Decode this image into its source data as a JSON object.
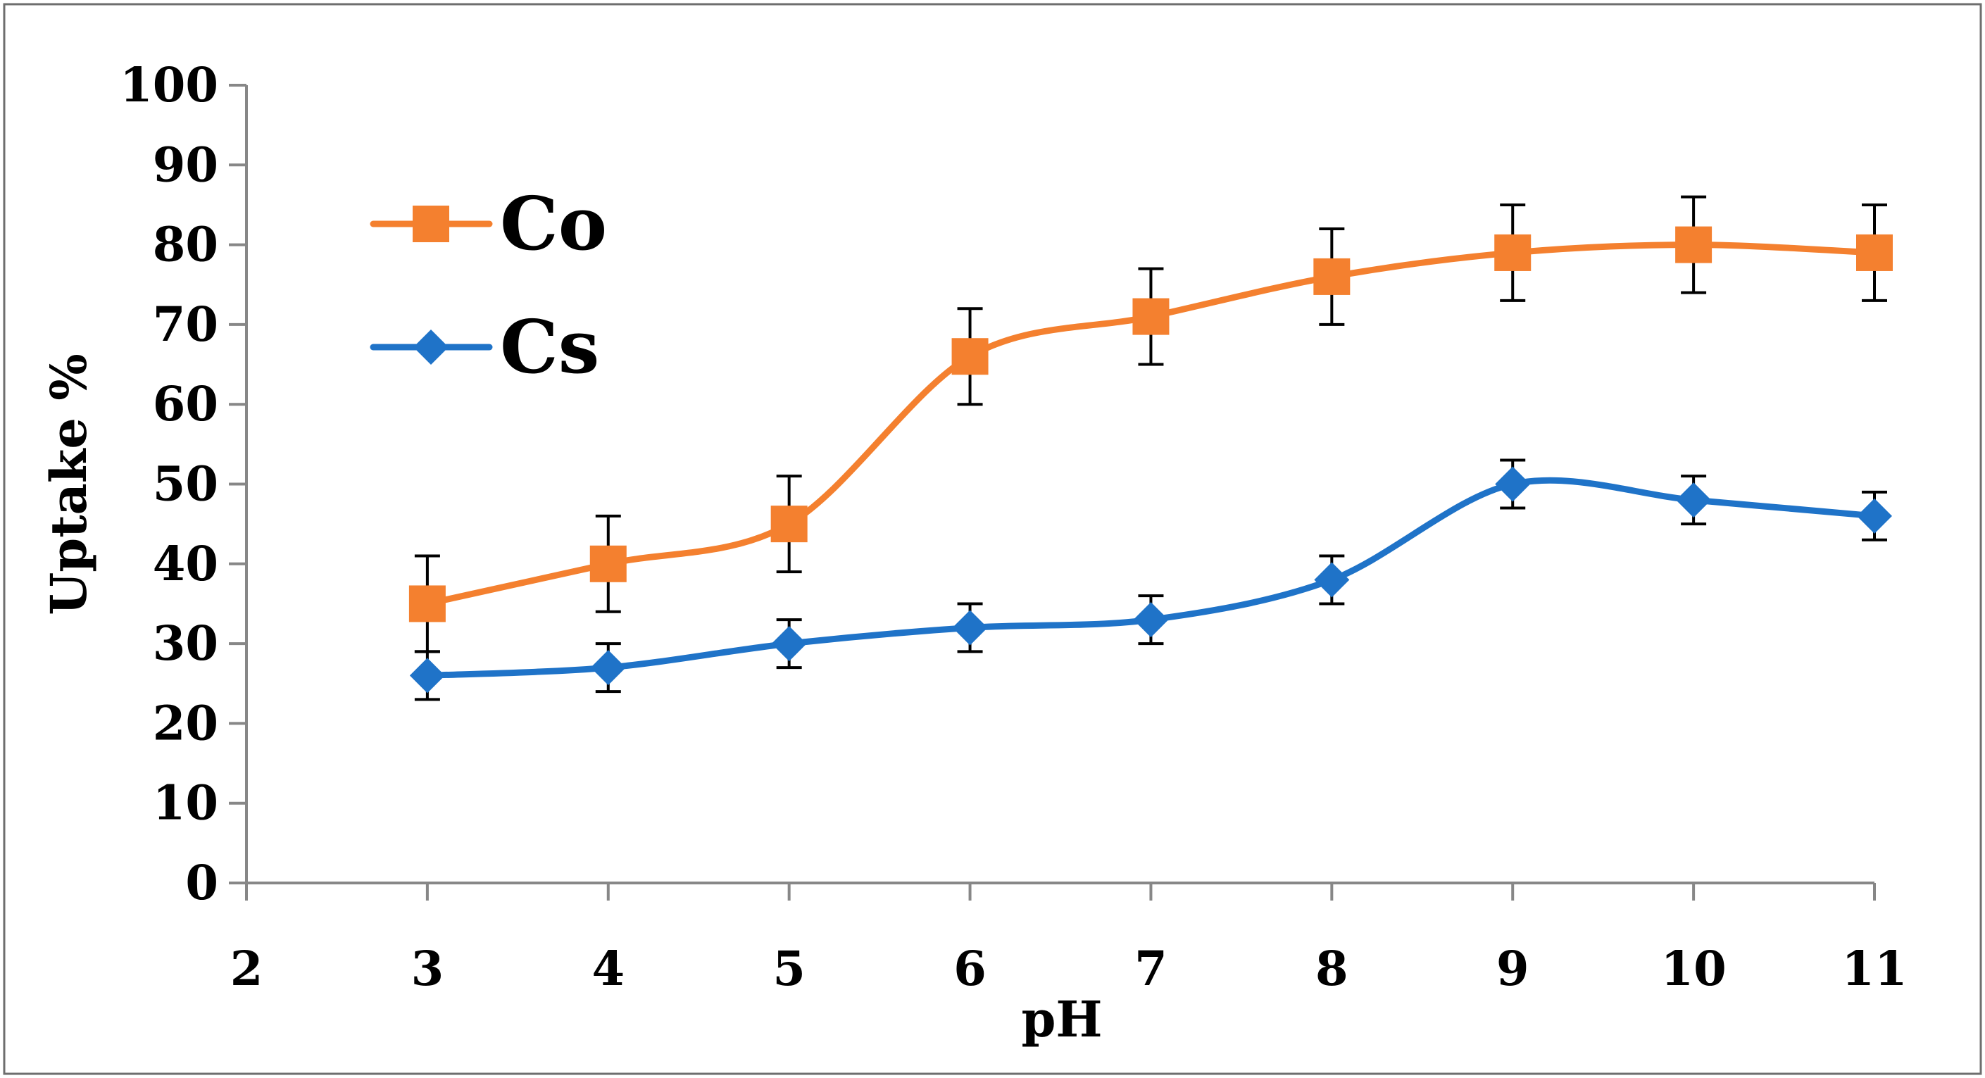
{
  "chart_data": {
    "type": "line",
    "title": "",
    "xlabel": "pH",
    "ylabel": "Uptake %",
    "x": [
      3,
      4,
      5,
      6,
      7,
      8,
      9,
      10,
      11
    ],
    "xlim": [
      2,
      11
    ],
    "ylim": [
      0,
      100
    ],
    "xticks": [
      "2",
      "3",
      "4",
      "5",
      "6",
      "7",
      "8",
      "9",
      "10",
      "11"
    ],
    "yticks": [
      "0",
      "10",
      "20",
      "30",
      "40",
      "50",
      "60",
      "70",
      "80",
      "90",
      "100"
    ],
    "grid": false,
    "legend_position": "top-left",
    "series": [
      {
        "name": "Co",
        "color": "#F4802F",
        "marker": "square",
        "values": [
          35,
          40,
          45,
          66,
          71,
          76,
          79,
          80,
          79
        ],
        "error": [
          6,
          6,
          6,
          6,
          6,
          6,
          6,
          6,
          6
        ]
      },
      {
        "name": "Cs",
        "color": "#1F73C8",
        "marker": "diamond",
        "values": [
          26,
          27,
          30,
          32,
          33,
          38,
          50,
          48,
          46
        ],
        "error": [
          3,
          3,
          3,
          3,
          3,
          3,
          3,
          3,
          3
        ]
      }
    ]
  }
}
